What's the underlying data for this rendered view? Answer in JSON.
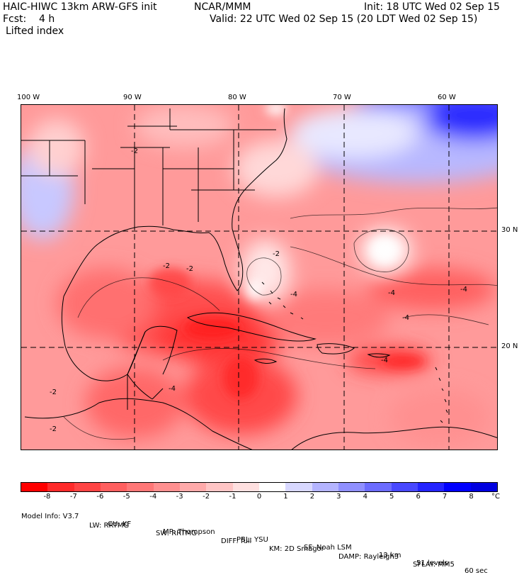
{
  "header": {
    "model_title": "HAIC-HIWC 13km ARW-GFS init",
    "org": "NCAR/MMM",
    "init": "Init: 18 UTC Wed 02 Sep 15",
    "fcst": "Fcst:    4 h",
    "valid": "Valid: 22 UTC Wed 02 Sep 15 (20 LDT Wed 02 Sep 15)",
    "field": "Lifted index"
  },
  "map": {
    "lon_labels": [
      "100 W",
      "90 W",
      "80 W",
      "70 W",
      "60 W"
    ],
    "lat_labels": [
      "30 N",
      "20 N"
    ],
    "contour_labels": [
      "-2",
      "-2",
      "-2",
      "-2",
      "-4",
      "-4",
      "-4",
      "-4",
      "-4",
      "-2",
      "-4",
      "-2"
    ]
  },
  "colorbar": {
    "labels": [
      "-8",
      "-7",
      "-6",
      "-5",
      "-4",
      "-3",
      "-2",
      "-1",
      "0",
      "1",
      "2",
      "3",
      "4",
      "5",
      "6",
      "7",
      "8"
    ],
    "unit": "°C",
    "colors": [
      "#ff0000",
      "#ff2a2a",
      "#ff4444",
      "#ff5f5f",
      "#ff7777",
      "#ff9090",
      "#ffaaaa",
      "#ffc5c5",
      "#ffe0e0",
      "#ffffff",
      "#d8d8ff",
      "#b4b4ff",
      "#9090ff",
      "#6c6cff",
      "#4848ff",
      "#2424ff",
      "#0000ff",
      "#0000e0"
    ]
  },
  "footer": {
    "line1": [
      "Model Info: V3.7",
      "CU: KF",
      "MP: Thompson",
      "PBL: YSU",
      "SF: Noah LSM",
      "13 km",
      "51 levels",
      "60 sec"
    ],
    "line2": [
      "LW: RRTMG",
      "SW: RRTMG",
      "DIFF: full",
      "KM: 2D Smagor",
      "DAMP: Rayleigh3",
      "SFLAY: MM5"
    ]
  }
}
